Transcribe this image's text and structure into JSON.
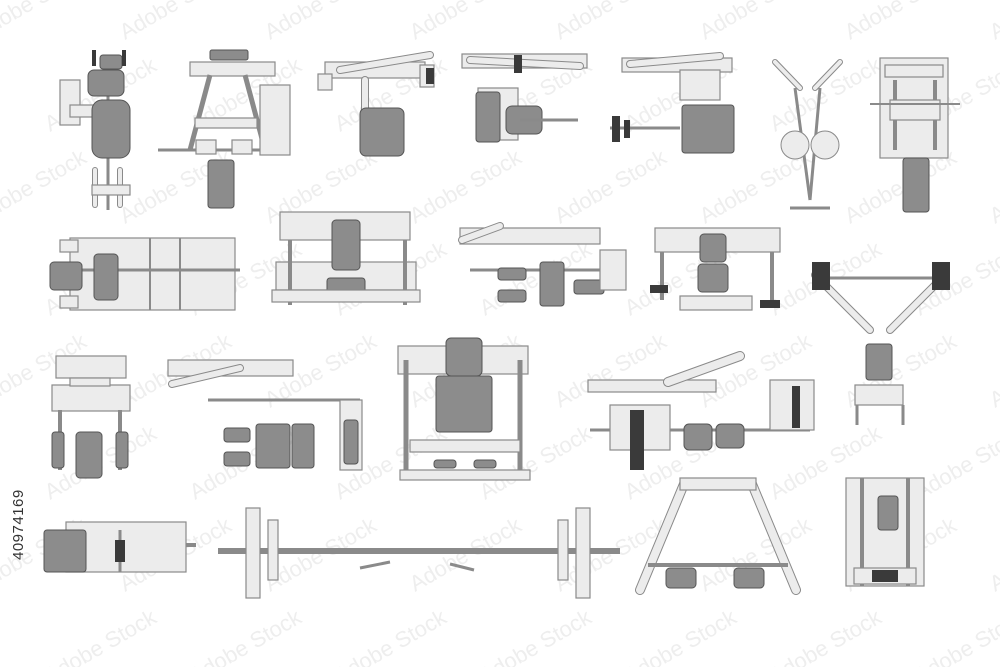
{
  "image_id_text": "40974169",
  "watermark_text": "Adobe Stock",
  "colors": {
    "background": "#ffffff",
    "frame_fill": "#ececec",
    "frame_stroke": "#8a8a8a",
    "pad_fill": "#8c8c8c",
    "pad_stroke": "#555555",
    "plate_fill": "#3a3a3a",
    "watermark": "#eeeeee"
  },
  "machines": [
    {
      "name": "machine-chest-press-a"
    },
    {
      "name": "machine-shoulder-press"
    },
    {
      "name": "machine-lat-arm-a"
    },
    {
      "name": "machine-lat-arm-b"
    },
    {
      "name": "machine-lever-row"
    },
    {
      "name": "machine-cable-crossover"
    },
    {
      "name": "machine-seated-station"
    },
    {
      "name": "machine-leg-press"
    },
    {
      "name": "machine-wide-bench-press"
    },
    {
      "name": "machine-pullover"
    },
    {
      "name": "machine-incline-press"
    },
    {
      "name": "machine-decline-press"
    },
    {
      "name": "machine-pec-deck"
    },
    {
      "name": "machine-seated-row"
    },
    {
      "name": "machine-smith-chair"
    },
    {
      "name": "machine-lying-leg-curl"
    },
    {
      "name": "machine-glute-bench"
    },
    {
      "name": "machine-olympic-bar"
    },
    {
      "name": "machine-a-frame-rack"
    },
    {
      "name": "machine-weight-stack"
    }
  ]
}
